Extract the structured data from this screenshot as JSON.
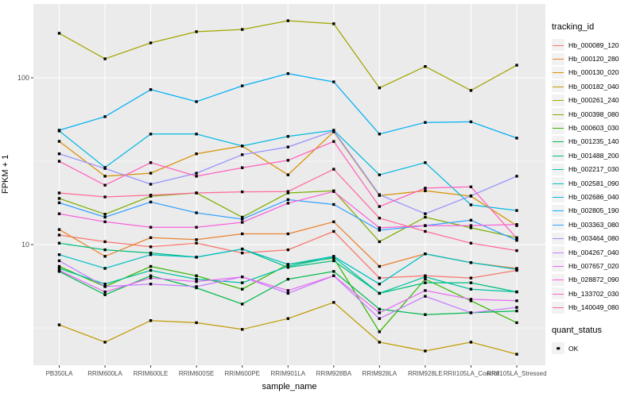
{
  "figure": {
    "x_axis_title": "sample_name",
    "y_axis_title": "FPKM + 1",
    "legend": {
      "tracking_title": "tracking_id",
      "quant_title": "quant_status",
      "quant_items": [
        {
          "label": "OK",
          "marker": "black-square"
        }
      ]
    },
    "style": {
      "panel_bg": "#EBEBEB",
      "grid_color": "#FFFFFF",
      "axis_text_color": "#4D4D4D",
      "axis_title_color": "#000000",
      "point_color": "#000000",
      "tick_color": "#333333"
    }
  },
  "chart_data": {
    "type": "line",
    "title": "",
    "xlabel": "sample_name",
    "ylabel": "FPKM + 1",
    "y_scale": "log10",
    "ylim": [
      1.9,
      280
    ],
    "y_major_ticks": [
      10,
      100
    ],
    "y_tick_labels": [
      "10",
      "100"
    ],
    "y_minor_gridlines": [
      3.162,
      31.623
    ],
    "grid": true,
    "legend_position": "right",
    "point_marker": "black square (quant_status = OK) at every data point",
    "categories": [
      "PB350LA",
      "RRIM600LA",
      "RRIM600LE",
      "RRIM600SE",
      "RRIM600PE",
      "RRIM901LA",
      "RRIM928BA",
      "RRIM928LA",
      "RRIM928LE",
      "RRII105LA_Control",
      "RRII105LA_Stressed"
    ],
    "series": [
      {
        "name": "Hb_000089_120",
        "color": "#F8766D",
        "values": [
          11.4,
          10.4,
          9.7,
          10.2,
          8.9,
          9.3,
          12.0,
          6.3,
          6.5,
          6.3,
          7.0
        ]
      },
      {
        "name": "Hb_000120_280",
        "color": "#EA8331",
        "values": [
          12.3,
          8.5,
          11.0,
          10.7,
          11.6,
          11.6,
          13.7,
          7.4,
          8.8,
          7.8,
          7.2
        ]
      },
      {
        "name": "Hb_000130_020",
        "color": "#D89000",
        "values": [
          41.6,
          25.7,
          26.8,
          35.0,
          39.0,
          26.2,
          47.5,
          19.7,
          21.0,
          19.5,
          13.0
        ]
      },
      {
        "name": "Hb_000182_040",
        "color": "#C09B00",
        "values": [
          3.3,
          2.6,
          3.5,
          3.4,
          3.1,
          3.6,
          4.5,
          2.6,
          2.3,
          2.6,
          2.2
        ]
      },
      {
        "name": "Hb_000261_240",
        "color": "#A3A500",
        "values": [
          185,
          130,
          162,
          189,
          195,
          220,
          211,
          87,
          117,
          84,
          119
        ]
      },
      {
        "name": "Hb_000398_080",
        "color": "#7CAE00",
        "values": [
          18.9,
          15.2,
          19.5,
          20.4,
          14.6,
          20.4,
          21.0,
          10.4,
          14.6,
          12.6,
          11.0
        ]
      },
      {
        "name": "Hb_000603_030",
        "color": "#39B600",
        "values": [
          7.4,
          5.6,
          7.4,
          6.5,
          5.4,
          7.6,
          8.3,
          3.0,
          6.2,
          4.6,
          3.4
        ]
      },
      {
        "name": "Hb_001235_140",
        "color": "#00BB4E",
        "values": [
          6.9,
          5.0,
          6.5,
          5.5,
          4.4,
          6.2,
          6.9,
          4.1,
          3.8,
          3.9,
          4.0
        ]
      },
      {
        "name": "Hb_001488_200",
        "color": "#00BF7D",
        "values": [
          10.2,
          9.3,
          8.9,
          8.4,
          9.4,
          7.3,
          8.0,
          5.1,
          5.9,
          5.9,
          5.2
        ]
      },
      {
        "name": "Hb_002217_030",
        "color": "#00C1A3",
        "values": [
          7.2,
          5.8,
          7.0,
          6.2,
          5.9,
          7.4,
          8.4,
          5.1,
          6.4,
          5.4,
          5.2
        ]
      },
      {
        "name": "Hb_002581_090",
        "color": "#00BFC4",
        "values": [
          8.7,
          7.2,
          8.7,
          8.4,
          9.4,
          7.6,
          8.5,
          5.8,
          8.8,
          7.8,
          7.1
        ]
      },
      {
        "name": "Hb_002686_040",
        "color": "#00BAE0",
        "values": [
          48.0,
          29.0,
          46.0,
          46.0,
          39.0,
          44.5,
          48.5,
          26.2,
          31.0,
          17.3,
          16.0
        ]
      },
      {
        "name": "Hb_002805_190",
        "color": "#00B0F6",
        "values": [
          48.5,
          58.5,
          85.0,
          72.0,
          89.5,
          106.0,
          94.6,
          46.0,
          54.0,
          54.5,
          43.5
        ]
      },
      {
        "name": "Hb_003363_080",
        "color": "#35A2FF",
        "values": [
          17.8,
          14.6,
          18.0,
          15.5,
          14.2,
          18.6,
          17.4,
          12.2,
          13.0,
          14.0,
          10.6
        ]
      },
      {
        "name": "Hb_003464_080",
        "color": "#9590FF",
        "values": [
          35.0,
          28.6,
          23.0,
          26.8,
          34.6,
          38.5,
          48.0,
          19.9,
          15.3,
          19.6,
          25.7
        ]
      },
      {
        "name": "Hb_004267_040",
        "color": "#C77CFF",
        "values": [
          8.0,
          5.6,
          5.8,
          5.6,
          6.4,
          5.1,
          6.5,
          3.6,
          4.9,
          3.9,
          4.2
        ]
      },
      {
        "name": "Hb_007657_020",
        "color": "#E76BF3",
        "values": [
          7.0,
          5.2,
          6.3,
          6.0,
          6.4,
          5.3,
          6.5,
          3.9,
          5.3,
          4.7,
          4.6
        ]
      },
      {
        "name": "Hb_028872_090",
        "color": "#FA62DB",
        "values": [
          15.3,
          13.7,
          12.7,
          12.7,
          13.6,
          17.7,
          20.8,
          12.6,
          13.0,
          13.0,
          13.2
        ]
      },
      {
        "name": "Hb_133702_030",
        "color": "#FF62BC",
        "values": [
          31.6,
          22.7,
          31.0,
          25.7,
          28.9,
          32.0,
          41.5,
          16.9,
          21.8,
          22.2,
          10.9
        ]
      },
      {
        "name": "Hb_140049_080",
        "color": "#FF6A98",
        "values": [
          20.4,
          19.3,
          19.8,
          20.4,
          20.7,
          20.8,
          28.3,
          14.4,
          12.0,
          10.2,
          9.2
        ]
      }
    ]
  }
}
